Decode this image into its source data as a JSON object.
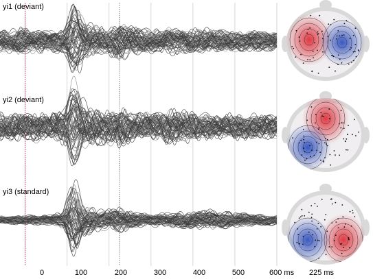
{
  "chart_data": {
    "type": "line",
    "x_unit": "ms",
    "xlim": [
      -60,
      600
    ],
    "x_ticks": [
      "0",
      "100",
      "200",
      "300",
      "400",
      "500",
      "600 ms"
    ],
    "x_tick_values": [
      0,
      100,
      200,
      300,
      400,
      500,
      600
    ],
    "highlight_latency_ms": 225,
    "topomap_label": "225 ms",
    "panels": [
      {
        "name": "yi1 (deviant)",
        "channel_count": 60,
        "envelope": {
          "x": [
            -60,
            0,
            30,
            60,
            90,
            110,
            125,
            150,
            175,
            200,
            225,
            260,
            300,
            350,
            400,
            450,
            500,
            550,
            600
          ],
          "amplitude": [
            0.45,
            0.55,
            0.5,
            0.45,
            0.5,
            0.95,
            1.0,
            0.7,
            0.6,
            0.55,
            0.85,
            0.6,
            0.5,
            0.55,
            0.5,
            0.5,
            0.45,
            0.45,
            0.4
          ]
        },
        "topomap": {
          "positive_region": "left",
          "negative_region": "right"
        }
      },
      {
        "name": "yi2 (deviant)",
        "channel_count": 60,
        "envelope": {
          "x": [
            -60,
            0,
            30,
            60,
            90,
            110,
            125,
            150,
            175,
            200,
            225,
            260,
            300,
            350,
            400,
            450,
            500,
            550,
            600
          ],
          "amplitude": [
            0.55,
            0.6,
            0.55,
            0.55,
            0.7,
            1.0,
            1.0,
            0.8,
            0.75,
            0.65,
            0.85,
            0.6,
            0.55,
            0.7,
            0.55,
            0.5,
            0.5,
            0.5,
            0.45
          ]
        },
        "topomap": {
          "positive_region": "frontal-center",
          "negative_region": "left-posterior"
        }
      },
      {
        "name": "yi3 (standard)",
        "channel_count": 60,
        "envelope": {
          "x": [
            -60,
            0,
            30,
            60,
            90,
            110,
            125,
            150,
            175,
            200,
            225,
            260,
            300,
            350,
            400,
            450,
            500,
            550,
            600
          ],
          "amplitude": [
            0.15,
            0.2,
            0.2,
            0.2,
            0.35,
            1.0,
            0.95,
            0.6,
            0.45,
            0.4,
            0.5,
            0.3,
            0.25,
            0.3,
            0.35,
            0.4,
            0.3,
            0.25,
            0.2
          ]
        },
        "topomap": {
          "positive_region": "right-posterior",
          "negative_region": "left-posterior"
        }
      }
    ],
    "colors": {
      "trace": "#3d3d3d",
      "trace_light": "#8a8a8a",
      "grid": "#cccccc",
      "zero_line": "#c03060",
      "positive": "#e0303a",
      "negative": "#3050c0",
      "head_fill": "#d9d9d9"
    }
  }
}
